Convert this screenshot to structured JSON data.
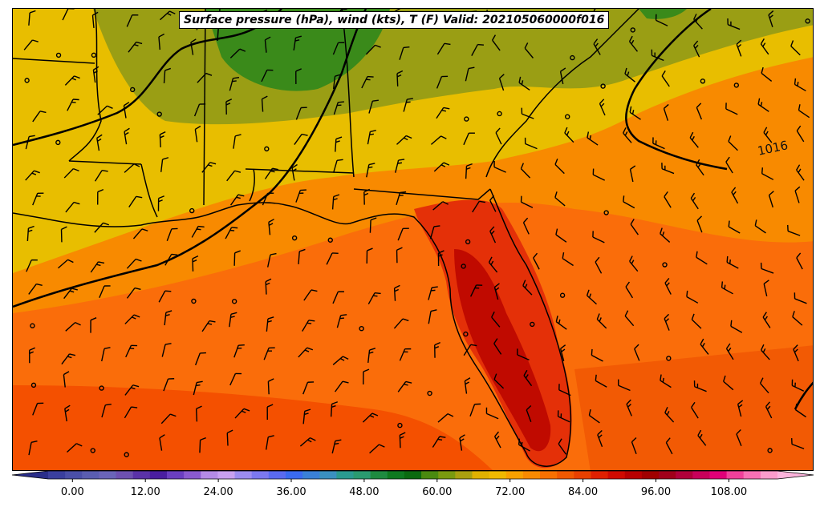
{
  "title": "Surface pressure (hPa), wind (kts), T (F) Valid: 202105060000f016",
  "contour_label": "1016",
  "colorbar": {
    "ticks": [
      "0.00",
      "12.00",
      "24.00",
      "36.00",
      "48.00",
      "60.00",
      "72.00",
      "84.00",
      "96.00",
      "108.00"
    ],
    "colors": [
      "#3a3f9e",
      "#4a4fa8",
      "#5a5db0",
      "#6a64b8",
      "#6d50b0",
      "#5a32a8",
      "#4a1ea0",
      "#6a3ec0",
      "#8a5ad0",
      "#b48ae6",
      "#c8a0f0",
      "#9c8cf0",
      "#7c78f0",
      "#5a6af0",
      "#3a6af0",
      "#3a80d8",
      "#3a90c0",
      "#2a9a90",
      "#2a9a70",
      "#1e8a40",
      "#0e7a20",
      "#0a6a10",
      "#4a8a10",
      "#7a9a10",
      "#aaa010",
      "#e0b000",
      "#f0b800",
      "#f8a000",
      "#f88a00",
      "#f87000",
      "#f05800",
      "#e84000",
      "#e02000",
      "#d00a00",
      "#b80000",
      "#a00000",
      "#a0001a",
      "#b0003a",
      "#c8005a",
      "#e00078",
      "#f0409a",
      "#f870b4",
      "#fc9ccc"
    ],
    "vmin": -4,
    "vmax": 116
  },
  "legend_colors": {
    "cool_green": "#3a8a1a",
    "olive": "#9a9e14",
    "yellow": "#e8be00",
    "light_orange": "#f8a000",
    "orange": "#fa6d0a",
    "dark_orange": "#f45000",
    "red": "#e43008",
    "dark_red": "#c00a00"
  }
}
